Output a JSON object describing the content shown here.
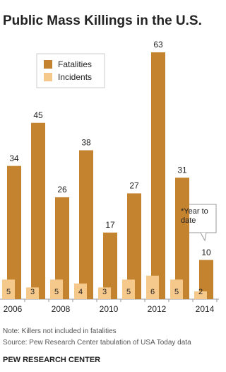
{
  "chart_data": {
    "type": "bar",
    "title": "Public Mass Killings in the U.S.",
    "categories": [
      "2006",
      null,
      "2008",
      null,
      "2010",
      null,
      "2012",
      null,
      "2014"
    ],
    "series": [
      {
        "name": "Fatalities",
        "color": "#c4832e",
        "values": [
          34,
          45,
          26,
          38,
          17,
          27,
          63,
          31,
          10
        ]
      },
      {
        "name": "Incidents",
        "color": "#f5c88b",
        "values": [
          5,
          3,
          5,
          4,
          3,
          5,
          6,
          5,
          2
        ]
      }
    ],
    "annotation": "*Year to date",
    "note": "Note: Killers not included in fatalities",
    "source": "Source: Pew Research Center tabulation of USA Today data",
    "credit": "PEW RESEARCH CENTER"
  }
}
